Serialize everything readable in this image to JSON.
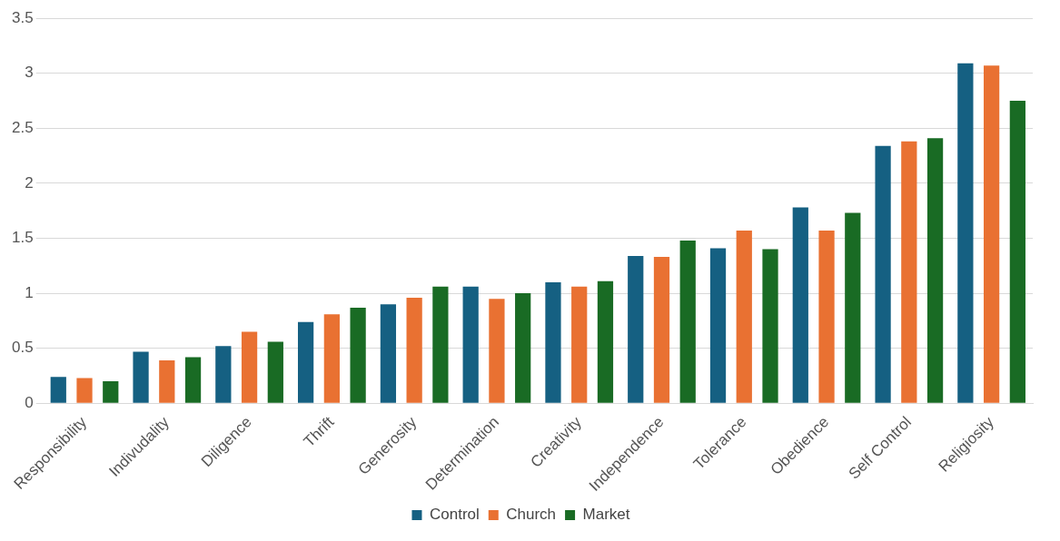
{
  "chart_data": {
    "type": "bar",
    "categories": [
      "Responsibility",
      "Indivudality",
      "Diligence",
      "Thrift",
      "Generosity",
      "Determination",
      "Creativity",
      "Independence",
      "Tolerance",
      "Obedience",
      "Self Control",
      "Religiosity"
    ],
    "series": [
      {
        "name": "Control",
        "color": "#156082",
        "values": [
          0.24,
          0.47,
          0.52,
          0.74,
          0.9,
          1.06,
          1.1,
          1.34,
          1.41,
          1.78,
          2.34,
          3.09
        ]
      },
      {
        "name": "Church",
        "color": "#e97132",
        "values": [
          0.23,
          0.39,
          0.65,
          0.81,
          0.96,
          0.95,
          1.06,
          1.33,
          1.57,
          1.57,
          2.38,
          3.07
        ]
      },
      {
        "name": "Market",
        "color": "#196b24",
        "values": [
          0.2,
          0.42,
          0.56,
          0.87,
          1.06,
          1.0,
          1.11,
          1.48,
          1.4,
          1.73,
          2.41,
          2.75
        ]
      }
    ],
    "ylim": [
      0,
      3.5
    ],
    "yticks": [
      0,
      0.5,
      1,
      1.5,
      2,
      2.5,
      3,
      3.5
    ],
    "grid": "y",
    "legend": "bottom"
  }
}
